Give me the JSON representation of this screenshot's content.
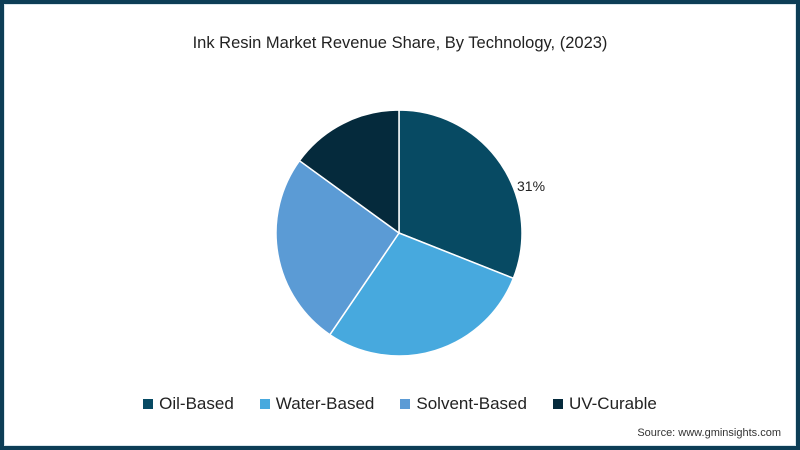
{
  "chart_data": {
    "type": "pie",
    "title": "Ink Resin Market Revenue Share, By Technology, (2023)",
    "categories": [
      "Oil-Based",
      "Water-Based",
      "Solvent-Based",
      "UV-Curable"
    ],
    "values": [
      31,
      28.5,
      25.5,
      15
    ],
    "colors": [
      "#074a63",
      "#47a9de",
      "#5b9bd5",
      "#052a3c"
    ],
    "data_labels": [
      {
        "category": "Oil-Based",
        "text": "31%"
      }
    ],
    "start_angle": "12 o'clock, clockwise",
    "legend_position": "bottom"
  },
  "title": "Ink Resin Market Revenue Share, By Technology, (2023)",
  "label_oil": "31%",
  "legend": [
    {
      "label": "Oil-Based",
      "color": "#074a63"
    },
    {
      "label": "Water-Based",
      "color": "#47a9de"
    },
    {
      "label": "Solvent-Based",
      "color": "#5b9bd5"
    },
    {
      "label": "UV-Curable",
      "color": "#052a3c"
    }
  ],
  "source": "Source: www.gminsights.com"
}
